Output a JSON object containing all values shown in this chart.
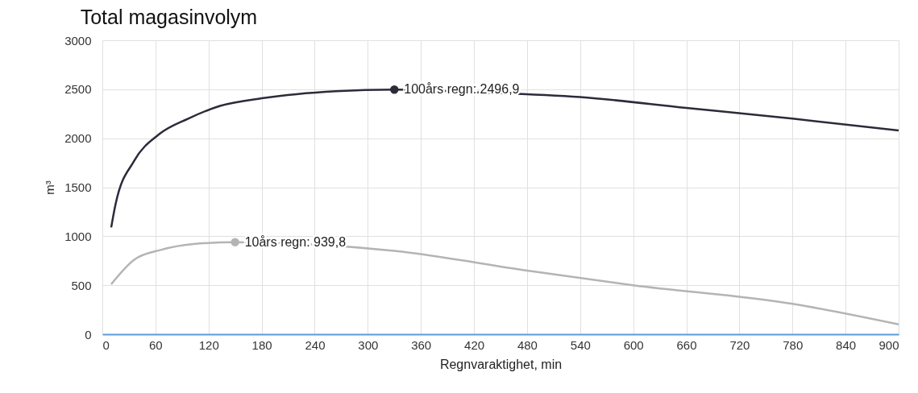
{
  "chart_data": {
    "type": "line",
    "title": "Total magasinvolym",
    "xlabel": "Regnvaraktighet, min",
    "ylabel": "m³",
    "xlim": [
      0,
      900
    ],
    "ylim": [
      0,
      3000
    ],
    "xticks": [
      0,
      60,
      120,
      180,
      240,
      300,
      360,
      420,
      480,
      540,
      600,
      660,
      720,
      780,
      840,
      900
    ],
    "yticks": [
      0,
      500,
      1000,
      1500,
      2000,
      2500,
      3000
    ],
    "grid": true,
    "legend": false,
    "marker": "none",
    "line_style": "solid",
    "series": [
      {
        "color": "#2b2b3a",
        "x": [
          10,
          15,
          36,
          64,
          97,
          133,
          182,
          264,
          330,
          420,
          540,
          660,
          780,
          900
        ],
        "values": [
          1090,
          1330,
          1770,
          2040,
          2200,
          2330,
          2410,
          2480,
          2496.9,
          2470,
          2420,
          2310,
          2200,
          2080
        ]
      },
      {
        "color": "#b4b4b4",
        "x": [
          10,
          36,
          66,
          103,
          150,
          330,
          480,
          600,
          780,
          900
        ],
        "values": [
          510,
          760,
          860,
          920,
          939.8,
          850,
          650,
          500,
          310,
          100
        ]
      }
    ],
    "annotations": [
      {
        "text": "100års regn: 2496,9",
        "x": 330,
        "y": 2496.9
      },
      {
        "text": "10års regn: 939,8",
        "x": 150,
        "y": 939.8
      }
    ]
  }
}
